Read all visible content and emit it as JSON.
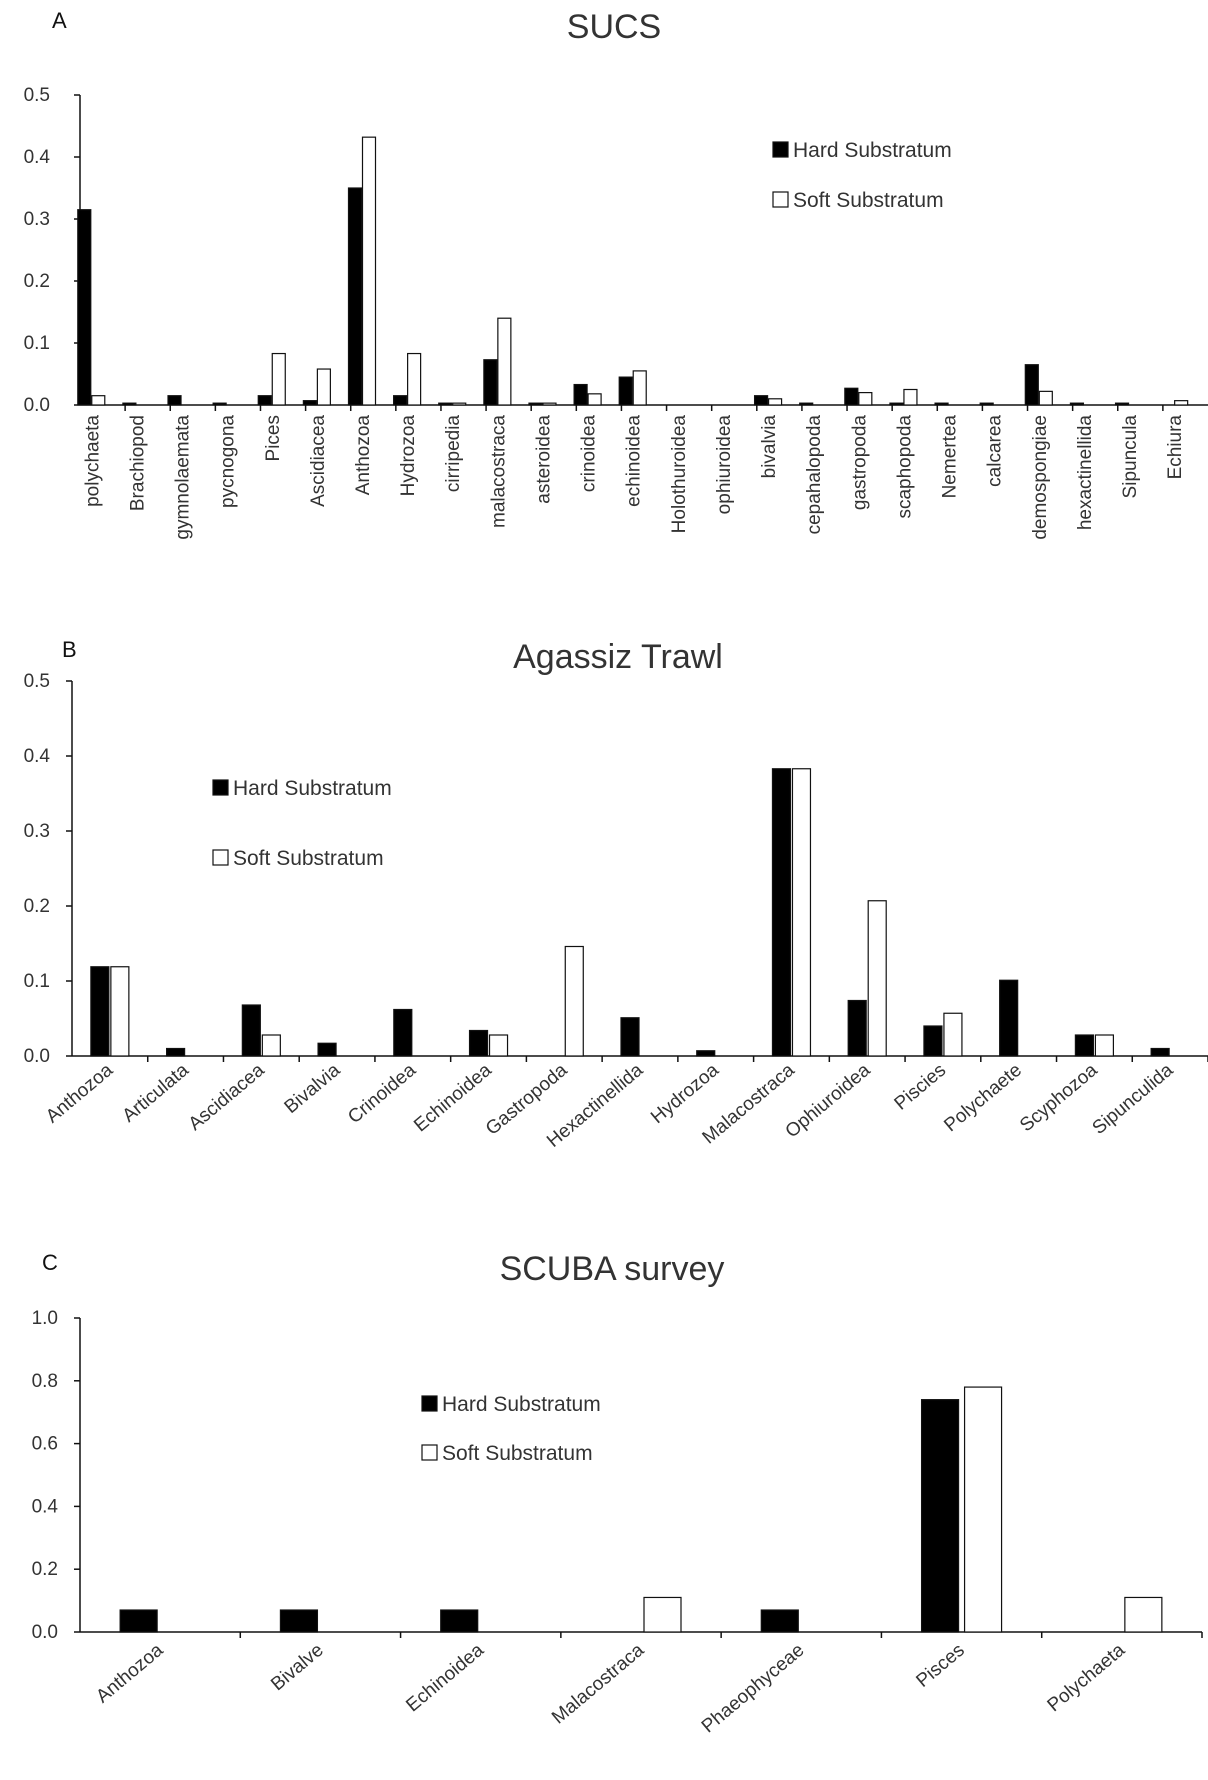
{
  "chart_data": [
    {
      "type": "bar",
      "panel": "A",
      "title": "SUCS",
      "ylim": [
        0,
        0.5
      ],
      "yticks": [
        "0.0",
        "0.1",
        "0.2",
        "0.3",
        "0.4",
        "0.5"
      ],
      "legend_position": "top-right",
      "categories": [
        "polychaeta",
        "Brachiopod",
        "gymnolaemata",
        "pycnogona",
        "Pices",
        "Ascidiacea",
        "Anthozoa",
        "Hydrozoa",
        "cirripedia",
        "malacostraca",
        "asteroidea",
        "crinoidea",
        "echinoidea",
        "Holothuroidea",
        "ophiuroidea",
        "bivalvia",
        "cepahalopoda",
        "gastropoda",
        "scaphopoda",
        "Nemertea",
        "calcarea",
        "demospongiae",
        "hexactinellida",
        "Sipuncula",
        "Echiura"
      ],
      "series": [
        {
          "name": "Hard Substratum",
          "fill": "#000000",
          "values": [
            0.315,
            0.003,
            0.015,
            0.003,
            0.015,
            0.007,
            0.35,
            0.015,
            0.003,
            0.073,
            0.003,
            0.033,
            0.045,
            0,
            0,
            0.015,
            0.003,
            0.027,
            0.003,
            0.003,
            0.003,
            0.065,
            0.003,
            0.003,
            0
          ]
        },
        {
          "name": "Soft Substratum",
          "fill": "#ffffff",
          "values": [
            0.015,
            0,
            0,
            0,
            0.083,
            0.058,
            0.432,
            0.083,
            0.003,
            0.14,
            0.003,
            0.018,
            0.055,
            0,
            0,
            0.01,
            0,
            0.02,
            0.025,
            0,
            0,
            0.022,
            0,
            0,
            0.007
          ]
        }
      ]
    },
    {
      "type": "bar",
      "panel": "B",
      "title": "Agassiz Trawl",
      "ylim": [
        0,
        0.5
      ],
      "yticks": [
        "0.0",
        "0.1",
        "0.2",
        "0.3",
        "0.4",
        "0.5"
      ],
      "legend_position": "top-left",
      "categories": [
        "Anthozoa",
        "Articulata",
        "Ascidiacea",
        "Bivalvia",
        "Crinoidea",
        "Echinoidea",
        "Gastropoda",
        "Hexactinellida",
        "Hydrozoa",
        "Malacostraca",
        "Ophiuroidea",
        "Piscies",
        "Polychaete",
        "Scyphozoa",
        "Sipunculida"
      ],
      "series": [
        {
          "name": "Hard Substratum",
          "fill": "#000000",
          "values": [
            0.119,
            0.01,
            0.068,
            0.017,
            0.062,
            0.034,
            0,
            0.051,
            0.007,
            0.383,
            0.074,
            0.04,
            0.101,
            0.028,
            0.01
          ]
        },
        {
          "name": "Soft Substratum",
          "fill": "#ffffff",
          "values": [
            0.119,
            0,
            0.028,
            0,
            0,
            0.028,
            0.146,
            0,
            0,
            0.383,
            0.207,
            0.057,
            0,
            0.028,
            0
          ]
        }
      ]
    },
    {
      "type": "bar",
      "panel": "C",
      "title": "SCUBA survey",
      "ylim": [
        0,
        1.0
      ],
      "yticks": [
        "0.0",
        "0.2",
        "0.4",
        "0.6",
        "0.8",
        "1.0"
      ],
      "legend_position": "top-center",
      "categories": [
        "Anthozoa",
        "Bivalve",
        "Echinoidea",
        "Malacostraca",
        "Phaeophyceae",
        "Pisces",
        "Polychaeta"
      ],
      "series": [
        {
          "name": "Hard Substratum",
          "fill": "#000000",
          "values": [
            0.07,
            0.07,
            0.07,
            0,
            0.07,
            0.74,
            0
          ]
        },
        {
          "name": "Soft Substratum",
          "fill": "#ffffff",
          "values": [
            0,
            0,
            0,
            0.11,
            0,
            0.78,
            0.11
          ]
        }
      ]
    }
  ]
}
